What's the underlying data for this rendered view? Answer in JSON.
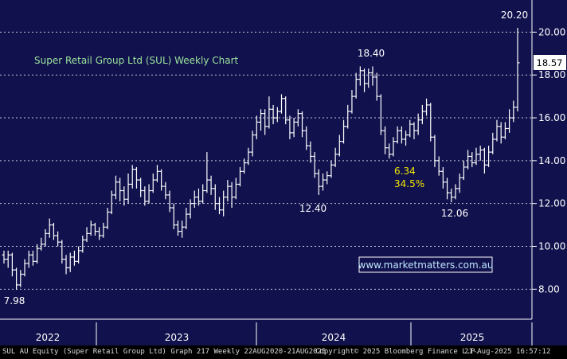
{
  "chart_data": {
    "type": "ohlc",
    "title": "Super Retail Group Ltd (SUL) Weekly Chart",
    "ylim": [
      6.6,
      21.5
    ],
    "y_ticks": [
      "8.00",
      "10.00",
      "12.00",
      "14.00",
      "16.00",
      "18.00",
      "20.00"
    ],
    "x_ticks": [
      "2022",
      "2023",
      "2024",
      "2025"
    ],
    "last_price_label": "18.57",
    "annotations": {
      "high_label": "20.20",
      "low_2021_label": "7.98",
      "low_2024_label": "12.40",
      "peak_2024_label": "18.40",
      "low_2025_label": "12.06",
      "move_points": "6.34",
      "move_pct": "34.5%"
    },
    "watermark": "www.marketmatters.com.au",
    "colors": {
      "background": "#11114d",
      "bars": "#ffffff",
      "grid": "#ffffff",
      "title": "#9be39b",
      "highlight": "#f3e800"
    },
    "series": [
      {
        "values": [
          [
            9.6,
            9.4,
            9.8,
            9.2
          ],
          [
            9.4,
            9.6,
            9.8,
            9.0
          ],
          [
            9.6,
            8.9,
            9.7,
            8.6
          ],
          [
            8.9,
            8.2,
            9.0,
            7.98
          ],
          [
            8.2,
            8.7,
            8.9,
            8.1
          ],
          [
            8.7,
            9.2,
            9.4,
            8.6
          ],
          [
            9.2,
            9.6,
            9.8,
            9.0
          ],
          [
            9.6,
            9.3,
            9.8,
            9.1
          ],
          [
            9.3,
            9.9,
            10.1,
            9.2
          ],
          [
            9.9,
            10.1,
            10.4,
            9.8
          ],
          [
            10.1,
            10.6,
            10.8,
            10.0
          ],
          [
            10.6,
            11.0,
            11.3,
            10.4
          ],
          [
            11.0,
            10.5,
            11.1,
            10.3
          ],
          [
            10.5,
            10.2,
            10.7,
            10.0
          ],
          [
            10.2,
            9.4,
            10.3,
            9.2
          ],
          [
            9.4,
            9.0,
            9.6,
            8.7
          ],
          [
            9.0,
            9.5,
            9.7,
            8.8
          ],
          [
            9.5,
            9.3,
            9.8,
            9.1
          ],
          [
            9.3,
            9.8,
            10.0,
            9.2
          ],
          [
            9.8,
            10.3,
            10.5,
            9.7
          ],
          [
            10.3,
            10.6,
            10.9,
            10.2
          ],
          [
            10.6,
            11.0,
            11.2,
            10.5
          ],
          [
            11.0,
            10.7,
            11.1,
            10.5
          ],
          [
            10.7,
            10.5,
            10.9,
            10.3
          ],
          [
            10.5,
            10.9,
            11.1,
            10.4
          ],
          [
            10.9,
            11.6,
            11.8,
            10.8
          ],
          [
            11.6,
            12.4,
            12.6,
            11.5
          ],
          [
            12.4,
            13.0,
            13.3,
            12.2
          ],
          [
            13.0,
            12.6,
            13.2,
            12.1
          ],
          [
            12.6,
            12.2,
            12.8,
            11.9
          ],
          [
            12.2,
            12.9,
            13.4,
            12.0
          ],
          [
            12.9,
            13.6,
            13.8,
            12.7
          ],
          [
            13.6,
            13.1,
            13.7,
            12.7
          ],
          [
            13.1,
            12.6,
            13.2,
            12.3
          ],
          [
            12.6,
            12.1,
            12.8,
            11.9
          ],
          [
            12.1,
            12.6,
            12.9,
            12.0
          ],
          [
            12.6,
            13.1,
            13.4,
            12.5
          ],
          [
            13.1,
            13.5,
            13.8,
            13.0
          ],
          [
            13.5,
            12.8,
            13.6,
            12.6
          ],
          [
            12.8,
            12.4,
            13.0,
            12.2
          ],
          [
            12.4,
            11.8,
            12.6,
            11.6
          ],
          [
            11.8,
            11.0,
            12.0,
            10.8
          ],
          [
            11.0,
            10.7,
            11.2,
            10.5
          ],
          [
            10.7,
            10.9,
            11.2,
            10.4
          ],
          [
            10.9,
            11.5,
            11.8,
            10.8
          ],
          [
            11.5,
            12.0,
            12.2,
            11.3
          ],
          [
            12.0,
            12.3,
            12.6,
            11.8
          ],
          [
            12.3,
            12.1,
            12.7,
            11.9
          ],
          [
            12.1,
            12.6,
            12.9,
            12.0
          ],
          [
            12.6,
            13.1,
            14.4,
            12.5
          ],
          [
            13.1,
            12.7,
            13.3,
            12.4
          ],
          [
            12.7,
            12.0,
            12.9,
            11.7
          ],
          [
            12.0,
            11.7,
            12.3,
            11.5
          ],
          [
            11.7,
            12.3,
            12.6,
            11.4
          ],
          [
            12.3,
            12.8,
            13.1,
            12.1
          ],
          [
            12.8,
            12.3,
            13.0,
            11.8
          ],
          [
            12.3,
            12.9,
            13.2,
            12.2
          ],
          [
            12.9,
            13.5,
            13.7,
            12.8
          ],
          [
            13.5,
            13.9,
            14.1,
            13.4
          ],
          [
            13.9,
            14.4,
            14.6,
            13.8
          ],
          [
            14.4,
            15.2,
            15.4,
            14.2
          ],
          [
            15.2,
            15.8,
            16.1,
            15.0
          ],
          [
            15.8,
            16.2,
            16.4,
            15.4
          ],
          [
            16.2,
            15.6,
            16.4,
            15.2
          ],
          [
            15.6,
            16.4,
            17.0,
            15.5
          ],
          [
            16.4,
            16.0,
            16.6,
            15.7
          ],
          [
            16.0,
            16.3,
            16.5,
            15.8
          ],
          [
            16.3,
            16.9,
            17.1,
            16.2
          ],
          [
            16.9,
            15.9,
            17.0,
            15.7
          ],
          [
            15.9,
            15.3,
            16.1,
            15.0
          ],
          [
            15.3,
            15.8,
            16.0,
            15.1
          ],
          [
            15.8,
            16.2,
            16.4,
            15.6
          ],
          [
            16.2,
            15.4,
            16.3,
            15.1
          ],
          [
            15.4,
            14.7,
            15.6,
            14.5
          ],
          [
            14.7,
            14.2,
            14.9,
            13.9
          ],
          [
            14.2,
            13.4,
            14.4,
            13.2
          ],
          [
            13.4,
            12.8,
            13.6,
            12.4
          ],
          [
            12.8,
            13.1,
            13.4,
            12.6
          ],
          [
            13.1,
            13.3,
            13.5,
            12.9
          ],
          [
            13.3,
            13.8,
            14.0,
            13.2
          ],
          [
            13.8,
            14.3,
            14.6,
            13.7
          ],
          [
            14.3,
            14.9,
            15.2,
            14.2
          ],
          [
            14.9,
            15.6,
            15.9,
            14.8
          ],
          [
            15.6,
            16.3,
            16.6,
            15.5
          ],
          [
            16.3,
            17.0,
            17.3,
            16.2
          ],
          [
            17.0,
            17.8,
            18.1,
            16.9
          ],
          [
            17.8,
            18.2,
            18.4,
            17.5
          ],
          [
            18.2,
            17.6,
            18.3,
            17.2
          ],
          [
            17.6,
            18.1,
            18.3,
            17.4
          ],
          [
            18.1,
            17.9,
            18.4,
            17.5
          ],
          [
            17.9,
            17.0,
            18.1,
            16.8
          ],
          [
            17.0,
            15.4,
            17.1,
            15.2
          ],
          [
            15.4,
            14.6,
            15.6,
            14.3
          ],
          [
            14.6,
            14.3,
            14.8,
            14.1
          ],
          [
            14.3,
            14.9,
            15.1,
            14.2
          ],
          [
            14.9,
            15.4,
            15.6,
            14.8
          ],
          [
            15.4,
            15.0,
            15.6,
            14.8
          ],
          [
            15.0,
            15.2,
            15.4,
            14.7
          ],
          [
            15.2,
            15.7,
            15.9,
            15.1
          ],
          [
            15.7,
            15.4,
            15.8,
            15.0
          ],
          [
            15.4,
            15.9,
            16.2,
            15.2
          ],
          [
            15.9,
            16.3,
            16.6,
            15.7
          ],
          [
            16.3,
            16.6,
            16.9,
            16.1
          ],
          [
            16.6,
            15.1,
            16.7,
            14.9
          ],
          [
            15.1,
            14.0,
            15.2,
            13.7
          ],
          [
            14.0,
            13.5,
            14.2,
            13.3
          ],
          [
            13.5,
            13.0,
            13.7,
            12.7
          ],
          [
            13.0,
            12.5,
            13.2,
            12.2
          ],
          [
            12.5,
            12.3,
            12.7,
            12.06
          ],
          [
            12.3,
            12.7,
            12.9,
            12.2
          ],
          [
            12.7,
            13.2,
            13.4,
            12.5
          ],
          [
            13.2,
            13.7,
            14.0,
            13.1
          ],
          [
            13.7,
            14.2,
            14.5,
            13.6
          ],
          [
            14.2,
            13.9,
            14.4,
            13.7
          ],
          [
            13.9,
            14.3,
            14.6,
            13.8
          ],
          [
            14.3,
            14.5,
            14.7,
            14.0
          ],
          [
            14.5,
            13.8,
            14.6,
            13.4
          ],
          [
            13.8,
            14.4,
            14.7,
            13.7
          ],
          [
            14.4,
            15.0,
            15.3,
            14.3
          ],
          [
            15.0,
            15.6,
            15.9,
            14.9
          ],
          [
            15.6,
            15.1,
            15.8,
            14.8
          ],
          [
            15.1,
            15.5,
            15.8,
            15.0
          ],
          [
            15.5,
            16.0,
            16.4,
            15.3
          ],
          [
            16.0,
            16.5,
            16.8,
            15.8
          ],
          [
            16.5,
            18.57,
            20.2,
            16.3
          ]
        ]
      }
    ]
  },
  "footer": {
    "left": "SUL AU Equity (Super Retail Group Ltd) Graph 217  Weekly 22AUG2020-21AUG2025",
    "center": "Copyright© 2025 Bloomberg Finance L.P.",
    "right": "21-Aug-2025 16:57:12"
  }
}
